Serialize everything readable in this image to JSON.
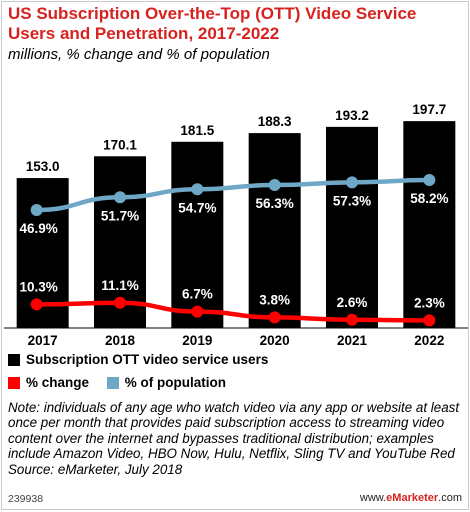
{
  "header": {
    "title": "US Subscription Over-the-Top (OTT) Video Service Users and Penetration, 2017-2022",
    "subtitle": "millions, % change and % of population"
  },
  "chart_data": {
    "type": "bar",
    "categories": [
      "2017",
      "2018",
      "2019",
      "2020",
      "2021",
      "2022"
    ],
    "series": [
      {
        "name": "Subscription OTT video service users",
        "type": "bar",
        "color": "#000000",
        "values": [
          153.0,
          170.1,
          181.5,
          188.3,
          193.2,
          197.7
        ],
        "labels": [
          "153.0",
          "170.1",
          "181.5",
          "188.3",
          "193.2",
          "197.7"
        ]
      },
      {
        "name": "% change",
        "type": "line",
        "color": "#ff0000",
        "values": [
          10.3,
          11.1,
          6.7,
          3.8,
          2.6,
          2.3
        ],
        "labels": [
          "10.3%",
          "11.1%",
          "6.7%",
          "3.8%",
          "2.6%",
          "2.3%"
        ]
      },
      {
        "name": "% of population",
        "type": "line",
        "color": "#6fa8c7",
        "values": [
          46.9,
          51.7,
          54.7,
          56.3,
          57.3,
          58.2
        ],
        "labels": [
          "46.9%",
          "51.7%",
          "54.7%",
          "56.3%",
          "57.3%",
          "58.2%"
        ]
      }
    ],
    "legend_position": "bottom",
    "grid": false
  },
  "note": "Note: individuals of any age who watch video via any app or website at least once per month that provides paid subscription access to streaming video content over the internet and bypasses traditional distribution; examples include Amazon Video, HBO Now, Hulu, Netflix, Sling TV and YouTube Red",
  "source": "Source: eMarketer, July 2018",
  "footer": {
    "chart_id": "239938",
    "brand_prefix": "www.",
    "brand_name": "eMarketer",
    "brand_suffix": ".com"
  }
}
